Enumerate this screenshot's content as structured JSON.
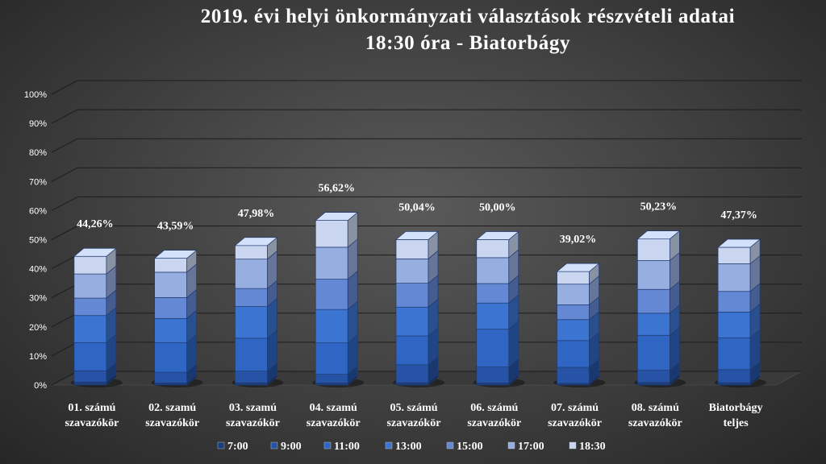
{
  "chart_data": {
    "type": "bar",
    "stacked": true,
    "three_d": true,
    "title_lines": [
      "2019. évi helyi önkormányzati választások részvételi adatai",
      "18:30 óra - Biatorbágy"
    ],
    "categories": [
      [
        "01. számú",
        "szavazókör"
      ],
      [
        "02. szamú",
        "szavazókör"
      ],
      [
        "03. szamú",
        "szavazókör"
      ],
      [
        "04. szamú",
        "szavazókör"
      ],
      [
        "05. számú",
        "szavazókör"
      ],
      [
        "06. számú",
        "szavazókör"
      ],
      [
        "07. számú",
        "szavazókör"
      ],
      [
        "08. számú",
        "szavazókör"
      ],
      [
        "Biatorbágy",
        "teljes"
      ]
    ],
    "totals_labels": [
      "44,26%",
      "43,59%",
      "47,98%",
      "56,62%",
      "50,04%",
      "50,00%",
      "39,02%",
      "50,23%",
      "47,37%"
    ],
    "ylim": [
      0,
      100
    ],
    "yticks": [
      "0%",
      "10%",
      "20%",
      "30%",
      "40%",
      "50%",
      "60%",
      "70%",
      "80%",
      "90%",
      "100%"
    ],
    "grid": true,
    "legend_position": "bottom",
    "series": [
      {
        "name": "7:00",
        "color": "#1b3f7e",
        "values": [
          1.0,
          0.7,
          0.8,
          0.7,
          0.8,
          0.7,
          0.6,
          0.9,
          0.8
        ]
      },
      {
        "name": "9:00",
        "color": "#2653a5",
        "values": [
          3.9,
          3.7,
          4.0,
          3.0,
          6.2,
          5.5,
          5.5,
          4.2,
          4.5
        ]
      },
      {
        "name": "11:00",
        "color": "#2f66c4",
        "values": [
          9.7,
          10.2,
          11.3,
          10.8,
          9.9,
          13.0,
          9.2,
          12.0,
          10.9
        ]
      },
      {
        "name": "13:00",
        "color": "#3c74d1",
        "values": [
          9.3,
          8.3,
          10.9,
          11.5,
          9.9,
          9.0,
          7.2,
          7.6,
          8.9
        ]
      },
      {
        "name": "15:00",
        "color": "#6488d4",
        "values": [
          6.0,
          7.2,
          6.2,
          10.4,
          8.2,
          6.7,
          5.1,
          8.2,
          7.1
        ]
      },
      {
        "name": "17:00",
        "color": "#97aee0",
        "values": [
          8.3,
          8.7,
          10.1,
          11.0,
          8.4,
          8.9,
          7.1,
          9.9,
          9.5
        ]
      },
      {
        "name": "18:30",
        "color": "#cad6ef",
        "values": [
          6.06,
          4.79,
          4.68,
          9.22,
          6.64,
          6.2,
          4.32,
          7.43,
          5.67
        ]
      }
    ]
  }
}
